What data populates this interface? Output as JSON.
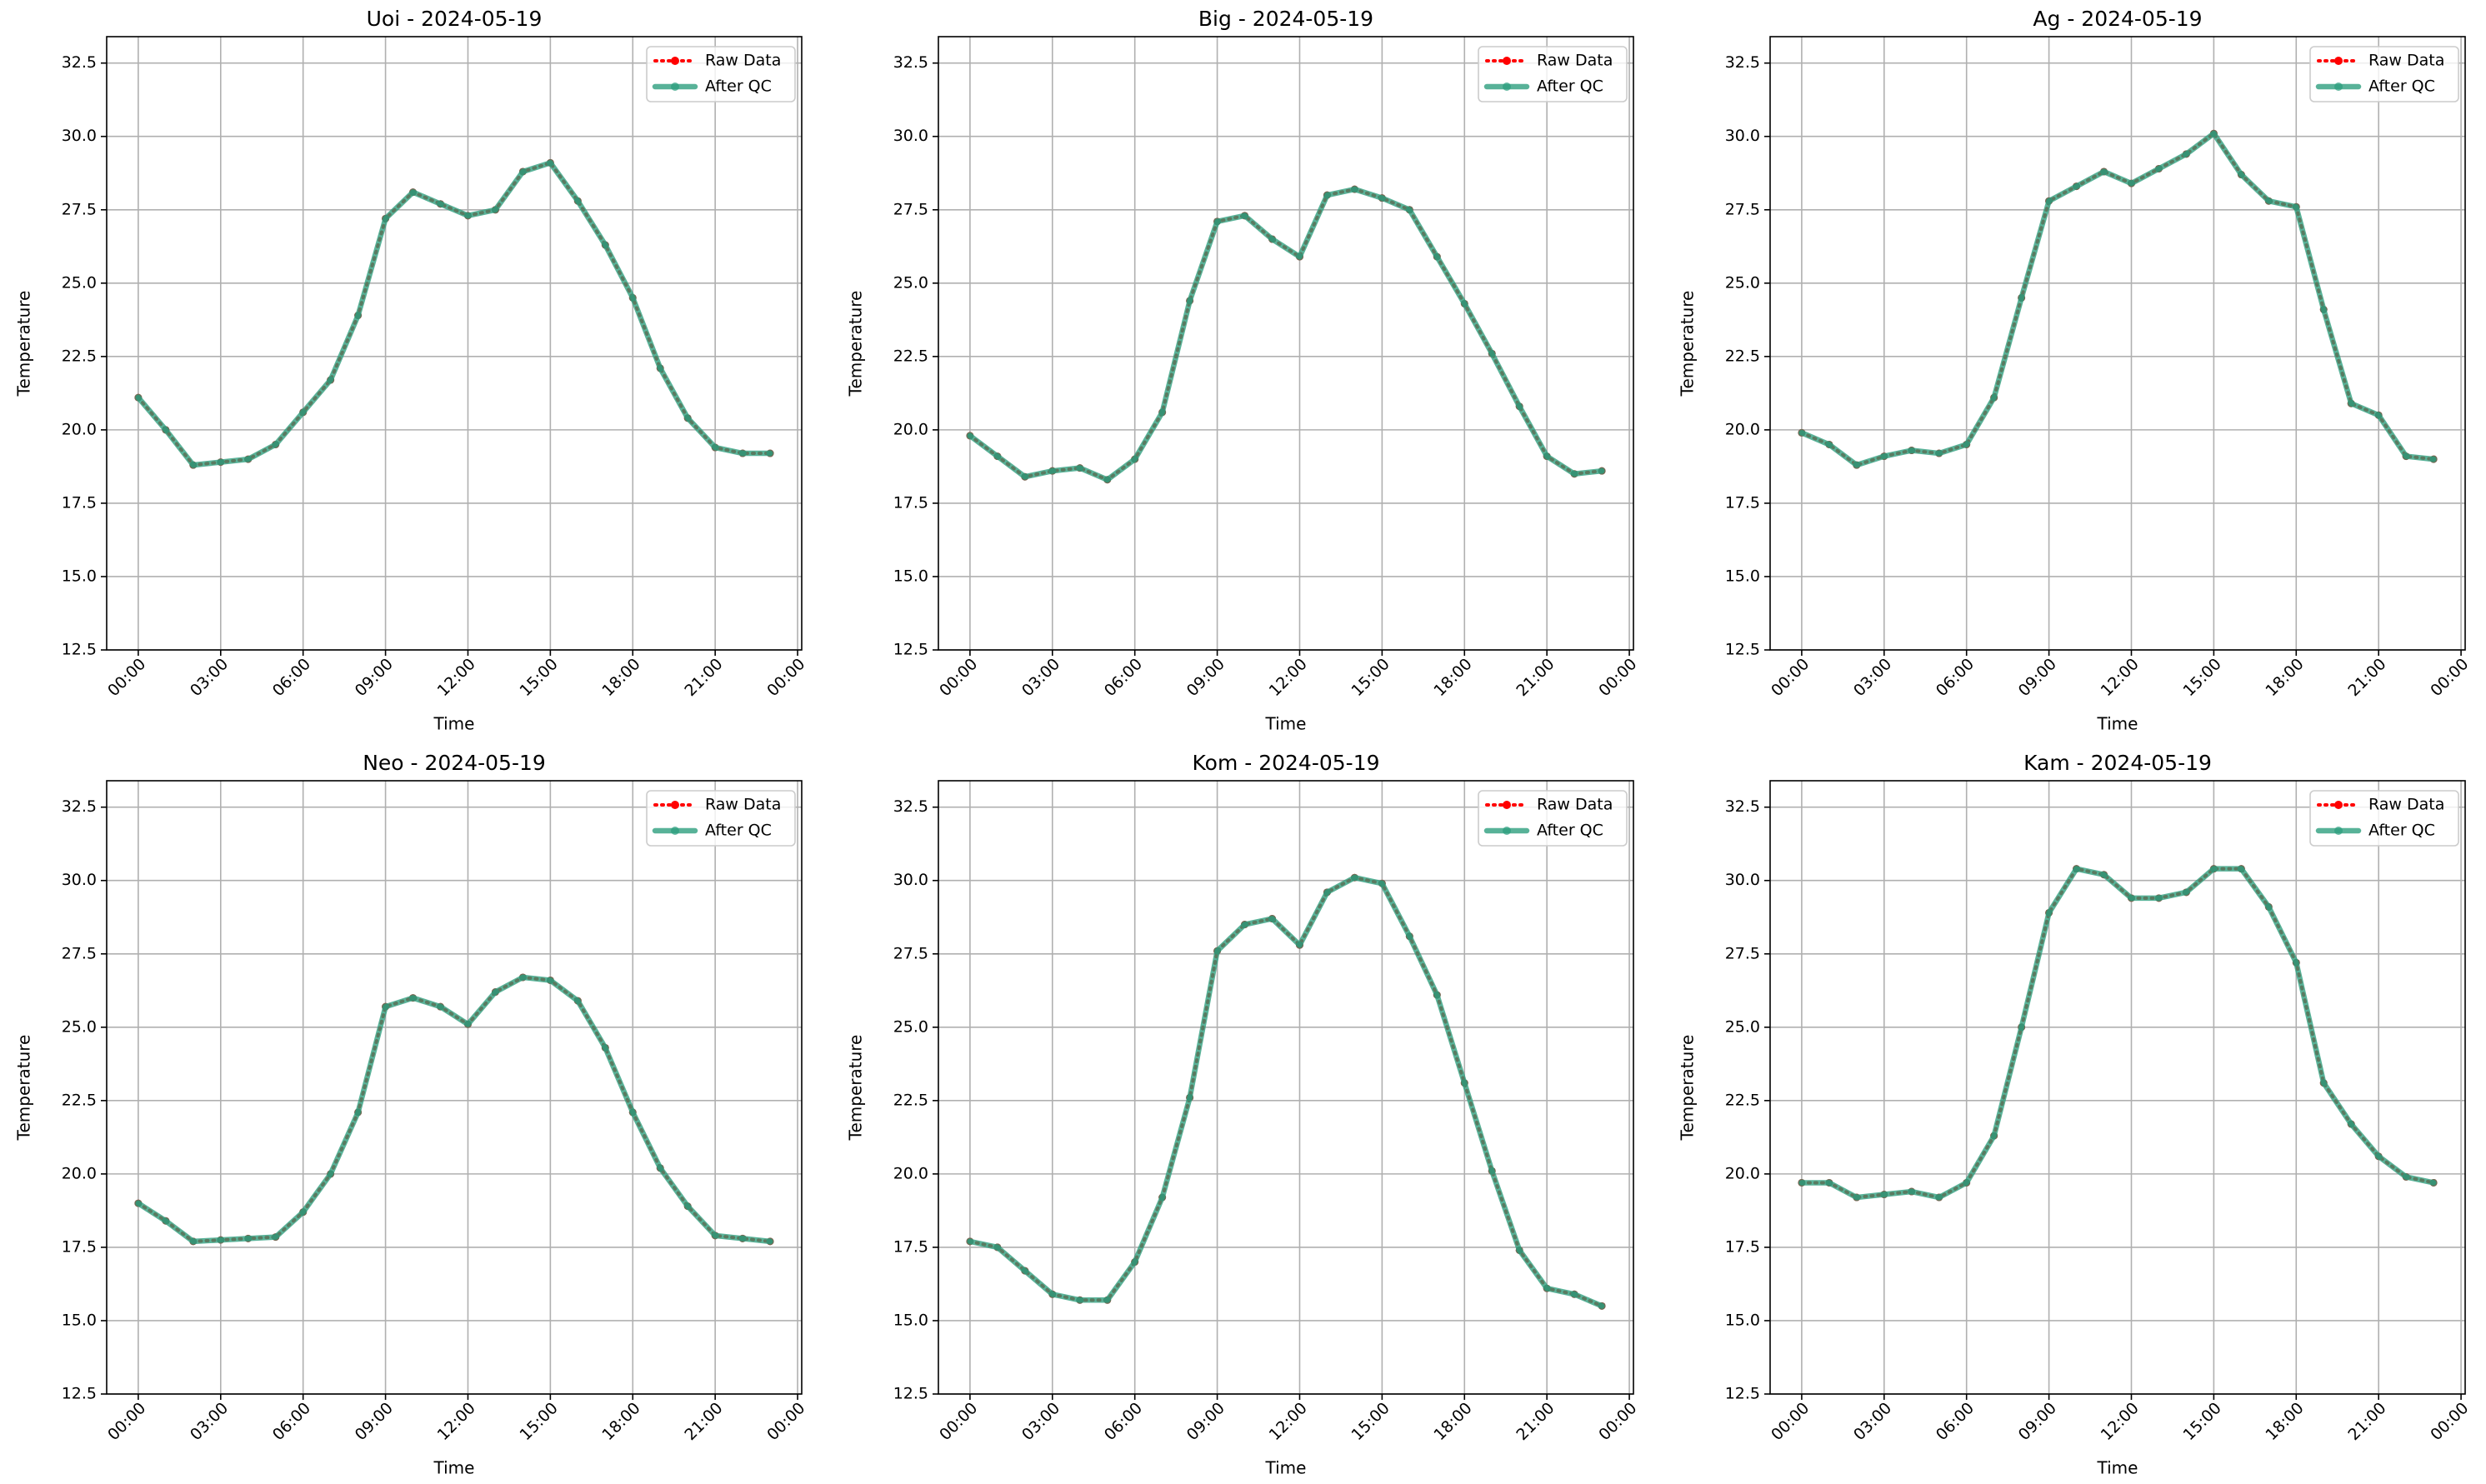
{
  "chart_data": [
    {
      "type": "line",
      "title": "Uoi - 2024-05-19",
      "xlabel": "Time",
      "ylabel": "Temperature",
      "grid": true,
      "legend": "upper right",
      "x": [
        0,
        1,
        2,
        3,
        4,
        5,
        6,
        7,
        8,
        9,
        10,
        11,
        12,
        13,
        14,
        15,
        16,
        17,
        18,
        19,
        20,
        21,
        22,
        23
      ],
      "xlim": [
        -1.15,
        24.15
      ],
      "xticks": [
        {
          "value": 0,
          "label": "00:00"
        },
        {
          "value": 3,
          "label": "03:00"
        },
        {
          "value": 6,
          "label": "06:00"
        },
        {
          "value": 9,
          "label": "09:00"
        },
        {
          "value": 12,
          "label": "12:00"
        },
        {
          "value": 15,
          "label": "15:00"
        },
        {
          "value": 18,
          "label": "18:00"
        },
        {
          "value": 21,
          "label": "21:00"
        },
        {
          "value": 24,
          "label": "00:00"
        }
      ],
      "ylim": [
        12.5,
        33.4
      ],
      "yticks": [
        12.5,
        {
          "value": 15,
          "label": "15.0"
        },
        17.5,
        {
          "value": 20,
          "label": "20.0"
        },
        22.5,
        {
          "value": 25,
          "label": "25.0"
        },
        27.5,
        {
          "value": 30,
          "label": "30.0"
        },
        32.5
      ],
      "series": [
        {
          "name": "Raw Data",
          "color": "#ff0000",
          "values": [
            21.1,
            20.0,
            18.8,
            18.9,
            19.0,
            19.5,
            20.6,
            21.7,
            23.9,
            27.2,
            28.1,
            27.7,
            27.3,
            27.5,
            28.8,
            29.1,
            27.8,
            26.3,
            24.5,
            22.1,
            20.4,
            19.4,
            19.2,
            19.2
          ]
        },
        {
          "name": "After QC",
          "color": "#2a9d7c",
          "values": [
            21.1,
            20.0,
            18.8,
            18.9,
            19.0,
            19.5,
            20.6,
            21.7,
            23.9,
            27.2,
            28.1,
            27.7,
            27.3,
            27.5,
            28.8,
            29.1,
            27.8,
            26.3,
            24.5,
            22.1,
            20.4,
            19.4,
            19.2,
            19.2
          ]
        }
      ]
    },
    {
      "type": "line",
      "title": "Big - 2024-05-19",
      "xlabel": "Time",
      "ylabel": "Temperature",
      "grid": true,
      "legend": "upper right",
      "x": [
        0,
        1,
        2,
        3,
        4,
        5,
        6,
        7,
        8,
        9,
        10,
        11,
        12,
        13,
        14,
        15,
        16,
        17,
        18,
        19,
        20,
        21,
        22,
        23
      ],
      "xlim": [
        -1.15,
        24.15
      ],
      "xticks": [
        {
          "value": 0,
          "label": "00:00"
        },
        {
          "value": 3,
          "label": "03:00"
        },
        {
          "value": 6,
          "label": "06:00"
        },
        {
          "value": 9,
          "label": "09:00"
        },
        {
          "value": 12,
          "label": "12:00"
        },
        {
          "value": 15,
          "label": "15:00"
        },
        {
          "value": 18,
          "label": "18:00"
        },
        {
          "value": 21,
          "label": "21:00"
        },
        {
          "value": 24,
          "label": "00:00"
        }
      ],
      "ylim": [
        12.5,
        33.4
      ],
      "yticks": [
        12.5,
        {
          "value": 15,
          "label": "15.0"
        },
        17.5,
        {
          "value": 20,
          "label": "20.0"
        },
        22.5,
        {
          "value": 25,
          "label": "25.0"
        },
        27.5,
        {
          "value": 30,
          "label": "30.0"
        },
        32.5
      ],
      "series": [
        {
          "name": "Raw Data",
          "color": "#ff0000",
          "values": [
            19.8,
            19.1,
            18.4,
            18.6,
            18.7,
            18.3,
            19.0,
            20.6,
            24.4,
            27.1,
            27.3,
            26.5,
            25.9,
            28.0,
            28.2,
            27.9,
            27.5,
            25.9,
            24.3,
            22.6,
            20.8,
            19.1,
            18.5,
            18.6
          ]
        },
        {
          "name": "After QC",
          "color": "#2a9d7c",
          "values": [
            19.8,
            19.1,
            18.4,
            18.6,
            18.7,
            18.3,
            19.0,
            20.6,
            24.4,
            27.1,
            27.3,
            26.5,
            25.9,
            28.0,
            28.2,
            27.9,
            27.5,
            25.9,
            24.3,
            22.6,
            20.8,
            19.1,
            18.5,
            18.6
          ]
        }
      ]
    },
    {
      "type": "line",
      "title": "Ag - 2024-05-19",
      "xlabel": "Time",
      "ylabel": "Temperature",
      "grid": true,
      "legend": "upper right",
      "x": [
        0,
        1,
        2,
        3,
        4,
        5,
        6,
        7,
        8,
        9,
        10,
        11,
        12,
        13,
        14,
        15,
        16,
        17,
        18,
        19,
        20,
        21,
        22,
        23
      ],
      "xlim": [
        -1.15,
        24.15
      ],
      "xticks": [
        {
          "value": 0,
          "label": "00:00"
        },
        {
          "value": 3,
          "label": "03:00"
        },
        {
          "value": 6,
          "label": "06:00"
        },
        {
          "value": 9,
          "label": "09:00"
        },
        {
          "value": 12,
          "label": "12:00"
        },
        {
          "value": 15,
          "label": "15:00"
        },
        {
          "value": 18,
          "label": "18:00"
        },
        {
          "value": 21,
          "label": "21:00"
        },
        {
          "value": 24,
          "label": "00:00"
        }
      ],
      "ylim": [
        12.5,
        33.4
      ],
      "yticks": [
        12.5,
        {
          "value": 15,
          "label": "15.0"
        },
        17.5,
        {
          "value": 20,
          "label": "20.0"
        },
        22.5,
        {
          "value": 25,
          "label": "25.0"
        },
        27.5,
        {
          "value": 30,
          "label": "30.0"
        },
        32.5
      ],
      "series": [
        {
          "name": "Raw Data",
          "color": "#ff0000",
          "values": [
            19.9,
            19.5,
            18.8,
            19.1,
            19.3,
            19.2,
            19.5,
            21.1,
            24.5,
            27.8,
            28.3,
            28.8,
            28.4,
            28.9,
            29.4,
            30.1,
            28.7,
            27.8,
            27.6,
            24.1,
            20.9,
            20.5,
            19.1,
            19.0
          ]
        },
        {
          "name": "After QC",
          "color": "#2a9d7c",
          "values": [
            19.9,
            19.5,
            18.8,
            19.1,
            19.3,
            19.2,
            19.5,
            21.1,
            24.5,
            27.8,
            28.3,
            28.8,
            28.4,
            28.9,
            29.4,
            30.1,
            28.7,
            27.8,
            27.6,
            24.1,
            20.9,
            20.5,
            19.1,
            19.0
          ]
        }
      ]
    },
    {
      "type": "line",
      "title": "Neo - 2024-05-19",
      "xlabel": "Time",
      "ylabel": "Temperature",
      "grid": true,
      "legend": "upper right",
      "x": [
        0,
        1,
        2,
        3,
        4,
        5,
        6,
        7,
        8,
        9,
        10,
        11,
        12,
        13,
        14,
        15,
        16,
        17,
        18,
        19,
        20,
        21,
        22,
        23
      ],
      "xlim": [
        -1.15,
        24.15
      ],
      "xticks": [
        {
          "value": 0,
          "label": "00:00"
        },
        {
          "value": 3,
          "label": "03:00"
        },
        {
          "value": 6,
          "label": "06:00"
        },
        {
          "value": 9,
          "label": "09:00"
        },
        {
          "value": 12,
          "label": "12:00"
        },
        {
          "value": 15,
          "label": "15:00"
        },
        {
          "value": 18,
          "label": "18:00"
        },
        {
          "value": 21,
          "label": "21:00"
        },
        {
          "value": 24,
          "label": "00:00"
        }
      ],
      "ylim": [
        12.5,
        33.4
      ],
      "yticks": [
        12.5,
        {
          "value": 15,
          "label": "15.0"
        },
        17.5,
        {
          "value": 20,
          "label": "20.0"
        },
        22.5,
        {
          "value": 25,
          "label": "25.0"
        },
        27.5,
        {
          "value": 30,
          "label": "30.0"
        },
        32.5
      ],
      "series": [
        {
          "name": "Raw Data",
          "color": "#ff0000",
          "values": [
            19.0,
            18.4,
            17.7,
            17.75,
            17.8,
            17.85,
            18.7,
            20.0,
            22.1,
            25.7,
            26.0,
            25.7,
            25.1,
            26.2,
            26.7,
            26.6,
            25.9,
            24.3,
            22.1,
            20.2,
            18.9,
            17.9,
            17.8,
            17.7
          ]
        },
        {
          "name": "After QC",
          "color": "#2a9d7c",
          "values": [
            19.0,
            18.4,
            17.7,
            17.75,
            17.8,
            17.85,
            18.7,
            20.0,
            22.1,
            25.7,
            26.0,
            25.7,
            25.1,
            26.2,
            26.7,
            26.6,
            25.9,
            24.3,
            22.1,
            20.2,
            18.9,
            17.9,
            17.8,
            17.7
          ]
        }
      ]
    },
    {
      "type": "line",
      "title": "Kom - 2024-05-19",
      "xlabel": "Time",
      "ylabel": "Temperature",
      "grid": true,
      "legend": "upper right",
      "x": [
        0,
        1,
        2,
        3,
        4,
        5,
        6,
        7,
        8,
        9,
        10,
        11,
        12,
        13,
        14,
        15,
        16,
        17,
        18,
        19,
        20,
        21,
        22,
        23
      ],
      "xlim": [
        -1.15,
        24.15
      ],
      "xticks": [
        {
          "value": 0,
          "label": "00:00"
        },
        {
          "value": 3,
          "label": "03:00"
        },
        {
          "value": 6,
          "label": "06:00"
        },
        {
          "value": 9,
          "label": "09:00"
        },
        {
          "value": 12,
          "label": "12:00"
        },
        {
          "value": 15,
          "label": "15:00"
        },
        {
          "value": 18,
          "label": "18:00"
        },
        {
          "value": 21,
          "label": "21:00"
        },
        {
          "value": 24,
          "label": "00:00"
        }
      ],
      "ylim": [
        12.5,
        33.4
      ],
      "yticks": [
        12.5,
        {
          "value": 15,
          "label": "15.0"
        },
        17.5,
        {
          "value": 20,
          "label": "20.0"
        },
        22.5,
        {
          "value": 25,
          "label": "25.0"
        },
        27.5,
        {
          "value": 30,
          "label": "30.0"
        },
        32.5
      ],
      "series": [
        {
          "name": "Raw Data",
          "color": "#ff0000",
          "values": [
            17.7,
            17.5,
            16.7,
            15.9,
            15.7,
            15.7,
            17.0,
            19.2,
            22.6,
            27.6,
            28.5,
            28.7,
            27.8,
            29.6,
            30.1,
            29.9,
            28.1,
            26.1,
            23.1,
            20.1,
            17.4,
            16.1,
            15.9,
            15.5
          ]
        },
        {
          "name": "After QC",
          "color": "#2a9d7c",
          "values": [
            17.7,
            17.5,
            16.7,
            15.9,
            15.7,
            15.7,
            17.0,
            19.2,
            22.6,
            27.6,
            28.5,
            28.7,
            27.8,
            29.6,
            30.1,
            29.9,
            28.1,
            26.1,
            23.1,
            20.1,
            17.4,
            16.1,
            15.9,
            15.5
          ]
        }
      ]
    },
    {
      "type": "line",
      "title": "Kam - 2024-05-19",
      "xlabel": "Time",
      "ylabel": "Temperature",
      "grid": true,
      "legend": "upper right",
      "x": [
        0,
        1,
        2,
        3,
        4,
        5,
        6,
        7,
        8,
        9,
        10,
        11,
        12,
        13,
        14,
        15,
        16,
        17,
        18,
        19,
        20,
        21,
        22,
        23
      ],
      "xlim": [
        -1.15,
        24.15
      ],
      "xticks": [
        {
          "value": 0,
          "label": "00:00"
        },
        {
          "value": 3,
          "label": "03:00"
        },
        {
          "value": 6,
          "label": "06:00"
        },
        {
          "value": 9,
          "label": "09:00"
        },
        {
          "value": 12,
          "label": "12:00"
        },
        {
          "value": 15,
          "label": "15:00"
        },
        {
          "value": 18,
          "label": "18:00"
        },
        {
          "value": 21,
          "label": "21:00"
        },
        {
          "value": 24,
          "label": "00:00"
        }
      ],
      "ylim": [
        12.5,
        33.4
      ],
      "yticks": [
        12.5,
        {
          "value": 15,
          "label": "15.0"
        },
        17.5,
        {
          "value": 20,
          "label": "20.0"
        },
        22.5,
        {
          "value": 25,
          "label": "25.0"
        },
        27.5,
        {
          "value": 30,
          "label": "30.0"
        },
        32.5
      ],
      "series": [
        {
          "name": "Raw Data",
          "color": "#ff0000",
          "values": [
            19.7,
            19.7,
            19.2,
            19.3,
            19.4,
            19.2,
            19.7,
            21.3,
            25.0,
            28.9,
            30.4,
            30.2,
            29.4,
            29.4,
            29.6,
            30.4,
            30.4,
            29.1,
            27.2,
            23.1,
            21.7,
            20.6,
            19.9,
            19.7
          ]
        },
        {
          "name": "After QC",
          "color": "#2a9d7c",
          "values": [
            19.7,
            19.7,
            19.2,
            19.3,
            19.4,
            19.2,
            19.7,
            21.3,
            25.0,
            28.9,
            30.4,
            30.2,
            29.4,
            29.4,
            29.6,
            30.4,
            30.4,
            29.1,
            27.2,
            23.1,
            21.7,
            20.6,
            19.9,
            19.7
          ]
        }
      ]
    }
  ]
}
